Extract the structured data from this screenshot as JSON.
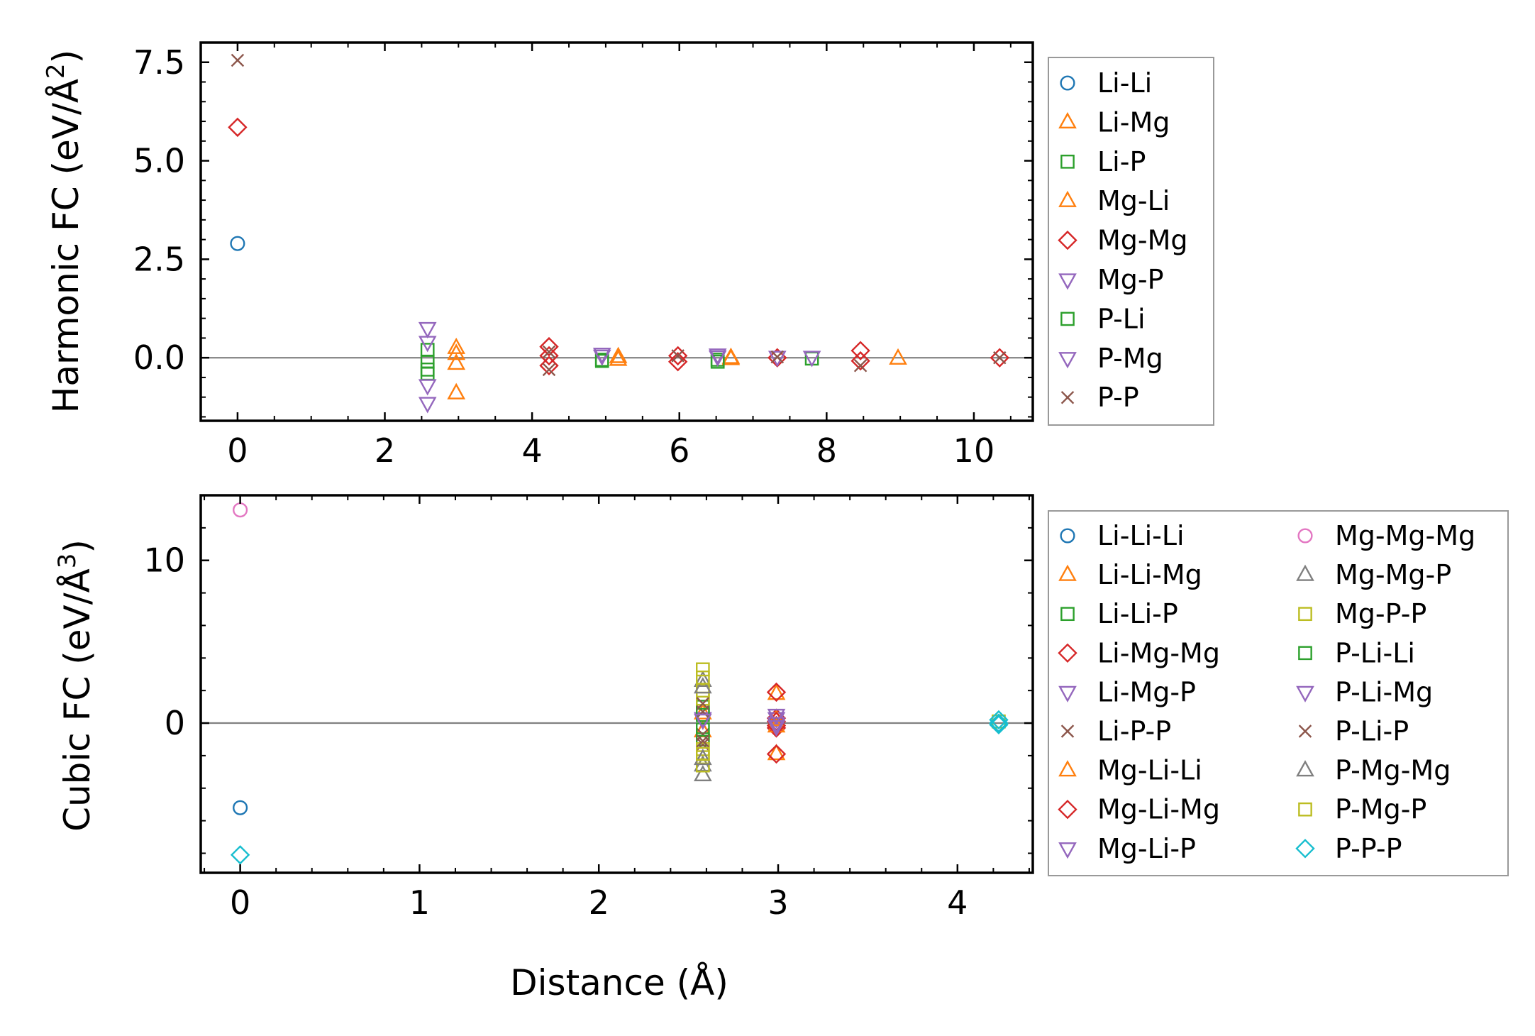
{
  "chart_data": [
    {
      "type": "scatter",
      "id": "harmonic",
      "xlabel": "",
      "ylabel": "Harmonic FC (eV/Å²)",
      "ylabel_parts": {
        "main": "Harmonic FC (eV/Å",
        "sup": "2",
        "close": ")"
      },
      "xlim": [
        -0.5,
        10.8
      ],
      "ylim": [
        -1.6,
        8.0
      ],
      "xticks": [
        0,
        2,
        4,
        6,
        8,
        10
      ],
      "xtick_labels": [
        "0",
        "2",
        "4",
        "6",
        "8",
        "10"
      ],
      "yticks": [
        0.0,
        2.5,
        5.0,
        7.5
      ],
      "ytick_labels": [
        "0.0",
        "2.5",
        "5.0",
        "7.5"
      ],
      "xminor": 0.5,
      "yminor": 0.5,
      "zero_line": true,
      "legend_position": "outside-right",
      "series": [
        {
          "name": "Li-Li",
          "marker": "circle",
          "color": "#1f77b4",
          "points": [
            [
              0,
              2.9
            ]
          ]
        },
        {
          "name": "Li-Mg",
          "marker": "triangle-up",
          "color": "#ff7f0e",
          "points": [
            [
              2.97,
              0.25
            ],
            [
              2.97,
              -0.15
            ],
            [
              2.97,
              -0.9
            ],
            [
              5.17,
              -0.05
            ],
            [
              6.7,
              0.0
            ],
            [
              8.97,
              -0.02
            ]
          ]
        },
        {
          "name": "Li-P",
          "marker": "square",
          "color": "#2ca02c",
          "points": [
            [
              2.58,
              0.2
            ],
            [
              2.58,
              -0.1
            ],
            [
              2.58,
              -0.4
            ],
            [
              4.95,
              -0.05
            ],
            [
              6.52,
              -0.05
            ],
            [
              7.8,
              -0.02
            ]
          ]
        },
        {
          "name": "Mg-Li",
          "marker": "triangle-up",
          "color": "#ff7f0e",
          "points": [
            [
              2.97,
              0.1
            ],
            [
              5.17,
              0.02
            ],
            [
              6.7,
              -0.03
            ]
          ]
        },
        {
          "name": "Mg-Mg",
          "marker": "diamond",
          "color": "#d62728",
          "points": [
            [
              0,
              5.85
            ],
            [
              4.23,
              0.28
            ],
            [
              4.23,
              0.05
            ],
            [
              4.23,
              -0.2
            ],
            [
              5.98,
              0.05
            ],
            [
              5.98,
              -0.1
            ],
            [
              7.33,
              0.0
            ],
            [
              8.46,
              0.18
            ],
            [
              8.46,
              -0.08
            ],
            [
              10.35,
              0.0
            ]
          ]
        },
        {
          "name": "Mg-P",
          "marker": "triangle-down",
          "color": "#9467bd",
          "points": [
            [
              2.58,
              0.75
            ],
            [
              2.58,
              -0.7
            ],
            [
              2.58,
              -1.15
            ],
            [
              4.95,
              0.1
            ],
            [
              6.52,
              0.08
            ],
            [
              7.8,
              0.02
            ]
          ]
        },
        {
          "name": "P-Li",
          "marker": "square",
          "color": "#2ca02c",
          "points": [
            [
              2.58,
              -0.3
            ],
            [
              4.95,
              -0.08
            ],
            [
              6.52,
              -0.1
            ]
          ]
        },
        {
          "name": "P-Mg",
          "marker": "triangle-down",
          "color": "#9467bd",
          "points": [
            [
              2.58,
              0.4
            ],
            [
              4.95,
              0.05
            ],
            [
              6.52,
              0.03
            ],
            [
              7.33,
              0.02
            ]
          ]
        },
        {
          "name": "P-P",
          "marker": "x",
          "color": "#8c564b",
          "points": [
            [
              0,
              7.55
            ],
            [
              4.23,
              0.15
            ],
            [
              4.23,
              -0.3
            ],
            [
              5.98,
              0.05
            ],
            [
              7.33,
              0.02
            ],
            [
              8.46,
              -0.2
            ],
            [
              10.35,
              0.0
            ]
          ]
        }
      ]
    },
    {
      "type": "scatter",
      "id": "cubic",
      "xlabel": "Distance (Å)",
      "ylabel": "Cubic FC (eV/Å³)",
      "ylabel_parts": {
        "main": "Cubic FC (eV/Å",
        "sup": "3",
        "close": ")"
      },
      "xlim": [
        -0.22,
        4.42
      ],
      "ylim": [
        -9.2,
        14.0
      ],
      "xticks": [
        0,
        1,
        2,
        3,
        4
      ],
      "xtick_labels": [
        "0",
        "1",
        "2",
        "3",
        "4"
      ],
      "yticks": [
        0,
        10
      ],
      "ytick_labels": [
        "0",
        "10"
      ],
      "xminor": 0.2,
      "yminor": 2,
      "zero_line": true,
      "legend_position": "outside-right",
      "legend_columns": 2,
      "series": [
        {
          "name": "Li-Li-Li",
          "marker": "circle",
          "color": "#1f77b4",
          "points": [
            [
              0,
              -5.2
            ]
          ]
        },
        {
          "name": "Li-Li-Mg",
          "marker": "triangle-up",
          "color": "#ff7f0e",
          "points": [
            [
              2.58,
              0.6
            ],
            [
              2.58,
              -0.5
            ],
            [
              2.99,
              1.8
            ],
            [
              2.99,
              -1.9
            ]
          ]
        },
        {
          "name": "Li-Li-P",
          "marker": "square",
          "color": "#2ca02c",
          "points": [
            [
              2.58,
              1.0
            ],
            [
              2.58,
              -1.0
            ]
          ]
        },
        {
          "name": "Li-Mg-Mg",
          "marker": "diamond",
          "color": "#d62728",
          "points": [
            [
              2.99,
              1.9
            ],
            [
              2.99,
              -1.9
            ],
            [
              2.99,
              0.3
            ],
            [
              2.99,
              -0.3
            ]
          ]
        },
        {
          "name": "Li-Mg-P",
          "marker": "triangle-down",
          "color": "#9467bd",
          "points": [
            [
              2.58,
              0.3
            ],
            [
              2.99,
              0.3
            ],
            [
              2.99,
              -0.1
            ]
          ]
        },
        {
          "name": "Li-P-P",
          "marker": "x",
          "color": "#8c564b",
          "points": [
            [
              2.58,
              0.7
            ],
            [
              2.58,
              -0.7
            ],
            [
              2.58,
              -1.3
            ]
          ]
        },
        {
          "name": "Mg-Li-Li",
          "marker": "triangle-up",
          "color": "#ff7f0e",
          "points": [
            [
              2.99,
              0.2
            ],
            [
              2.99,
              -0.2
            ]
          ]
        },
        {
          "name": "Mg-Li-Mg",
          "marker": "diamond",
          "color": "#d62728",
          "points": [
            [
              2.99,
              0.1
            ],
            [
              2.99,
              -0.15
            ]
          ]
        },
        {
          "name": "Mg-Li-P",
          "marker": "triangle-down",
          "color": "#9467bd",
          "points": [
            [
              2.99,
              0.5
            ],
            [
              2.99,
              0.0
            ]
          ]
        },
        {
          "name": "Mg-Mg-Mg",
          "marker": "circle",
          "color": "#e377c2",
          "points": [
            [
              0,
              13.1
            ]
          ]
        },
        {
          "name": "Mg-Mg-P",
          "marker": "triangle-up",
          "color": "#7f7f7f",
          "points": [
            [
              2.58,
              2.6
            ],
            [
              2.58,
              -2.6
            ],
            [
              2.58,
              -3.2
            ]
          ]
        },
        {
          "name": "Mg-P-P",
          "marker": "square",
          "color": "#bcbd22",
          "points": [
            [
              2.58,
              3.3
            ],
            [
              2.58,
              2.0
            ],
            [
              2.58,
              1.5
            ],
            [
              2.58,
              -1.6
            ],
            [
              2.58,
              -2.1
            ],
            [
              2.58,
              -2.6
            ]
          ]
        },
        {
          "name": "P-Li-Li",
          "marker": "square",
          "color": "#2ca02c",
          "points": [
            [
              2.58,
              0.5
            ],
            [
              2.58,
              -0.4
            ]
          ]
        },
        {
          "name": "P-Li-Mg",
          "marker": "triangle-down",
          "color": "#9467bd",
          "points": [
            [
              2.58,
              0.2
            ],
            [
              2.99,
              -0.2
            ]
          ]
        },
        {
          "name": "P-Li-P",
          "marker": "x",
          "color": "#8c564b",
          "points": [
            [
              2.58,
              -1.1
            ],
            [
              2.58,
              1.2
            ]
          ]
        },
        {
          "name": "P-Mg-Mg",
          "marker": "triangle-up",
          "color": "#7f7f7f",
          "points": [
            [
              2.58,
              2.2
            ],
            [
              2.58,
              -2.2
            ]
          ]
        },
        {
          "name": "P-Mg-P",
          "marker": "square",
          "color": "#bcbd22",
          "points": [
            [
              2.58,
              2.8
            ],
            [
              2.58,
              -1.9
            ],
            [
              4.23,
              0.1
            ]
          ]
        },
        {
          "name": "P-P-P",
          "marker": "diamond",
          "color": "#17becf",
          "points": [
            [
              0,
              -8.1
            ],
            [
              4.23,
              0.2
            ],
            [
              4.23,
              -0.1
            ],
            [
              4.23,
              0.0
            ]
          ]
        }
      ]
    }
  ]
}
